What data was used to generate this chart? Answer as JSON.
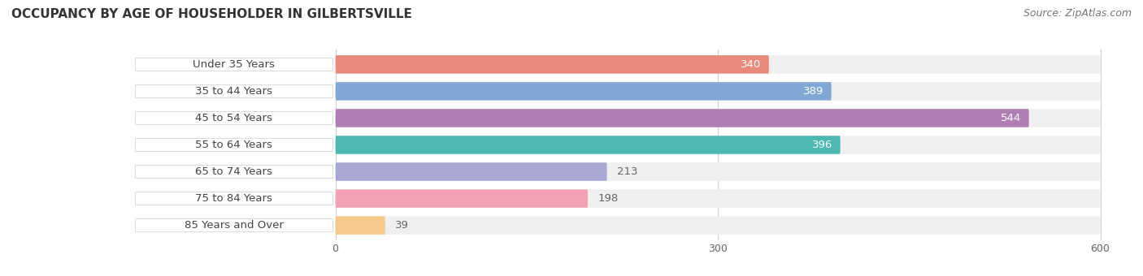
{
  "title": "OCCUPANCY BY AGE OF HOUSEHOLDER IN GILBERTSVILLE",
  "source": "Source: ZipAtlas.com",
  "categories": [
    "Under 35 Years",
    "35 to 44 Years",
    "45 to 54 Years",
    "55 to 64 Years",
    "65 to 74 Years",
    "75 to 84 Years",
    "85 Years and Over"
  ],
  "values": [
    340,
    389,
    544,
    396,
    213,
    198,
    39
  ],
  "bar_colors": [
    "#e8897a",
    "#7fa8d4",
    "#b07db5",
    "#4db8b0",
    "#a9a8d4",
    "#f4a0b5",
    "#f5c98a"
  ],
  "bar_bg_color": "#efefef",
  "xlim": [
    0,
    600
  ],
  "xticks": [
    0,
    300,
    600
  ],
  "value_label_color_inside": "#ffffff",
  "value_label_color_outside": "#666666",
  "inside_threshold": 250,
  "title_fontsize": 11,
  "source_fontsize": 9,
  "label_fontsize": 9.5,
  "tick_fontsize": 9,
  "bar_height": 0.68,
  "background_color": "#ffffff",
  "label_pill_color": "#ffffff",
  "label_text_color": "#444444",
  "grid_color": "#d0d0d0",
  "bar_gap": 0.18
}
